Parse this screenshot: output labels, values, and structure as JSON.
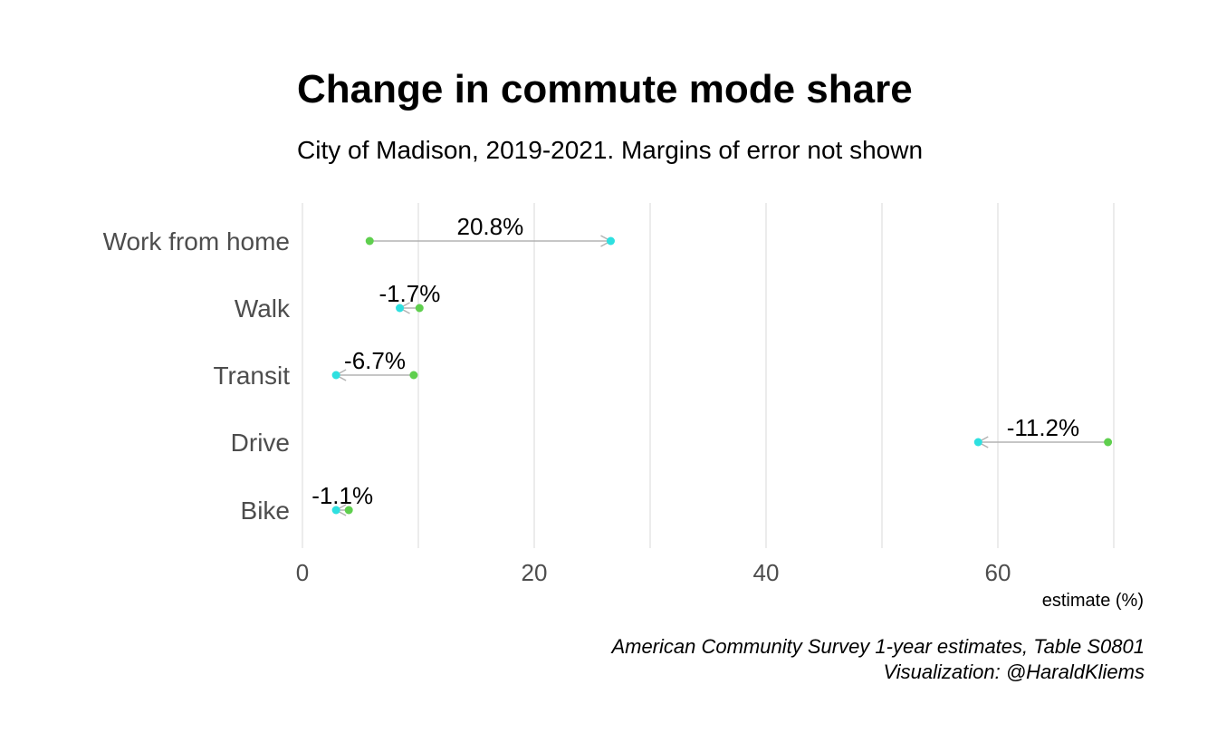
{
  "chart_data": {
    "type": "dumbbell",
    "title": "Change in commute mode share",
    "subtitle": "City of Madison, 2019-2021. Margins of error not shown",
    "xlabel": "estimate (%)",
    "ylabel": "",
    "xlim": [
      0,
      70
    ],
    "xticks": [
      0,
      20,
      40,
      60
    ],
    "grid": true,
    "legend": "none",
    "caption": [
      "American Community Survey 1-year estimates, Table S0801",
      "Visualization: @HaraldKliems"
    ],
    "categories": [
      "Work from home",
      "Walk",
      "Transit",
      "Drive",
      "Bike"
    ],
    "series": [
      {
        "values_2019": [
          5.8,
          10.1,
          9.6,
          69.5,
          4.0
        ]
      },
      {
        "values_2021": [
          26.6,
          8.4,
          2.9,
          58.3,
          2.9
        ]
      }
    ],
    "labels": [
      "20.8%",
      "-1.7%",
      "-6.7%",
      "-11.2%",
      "-1.1%"
    ],
    "colors": {
      "start": "#5fcf4e",
      "end": "#2ee0e0",
      "arrow": "#b3b3b3",
      "grid": "#d9d9d9",
      "axis_text": "#4d4d4d"
    }
  }
}
